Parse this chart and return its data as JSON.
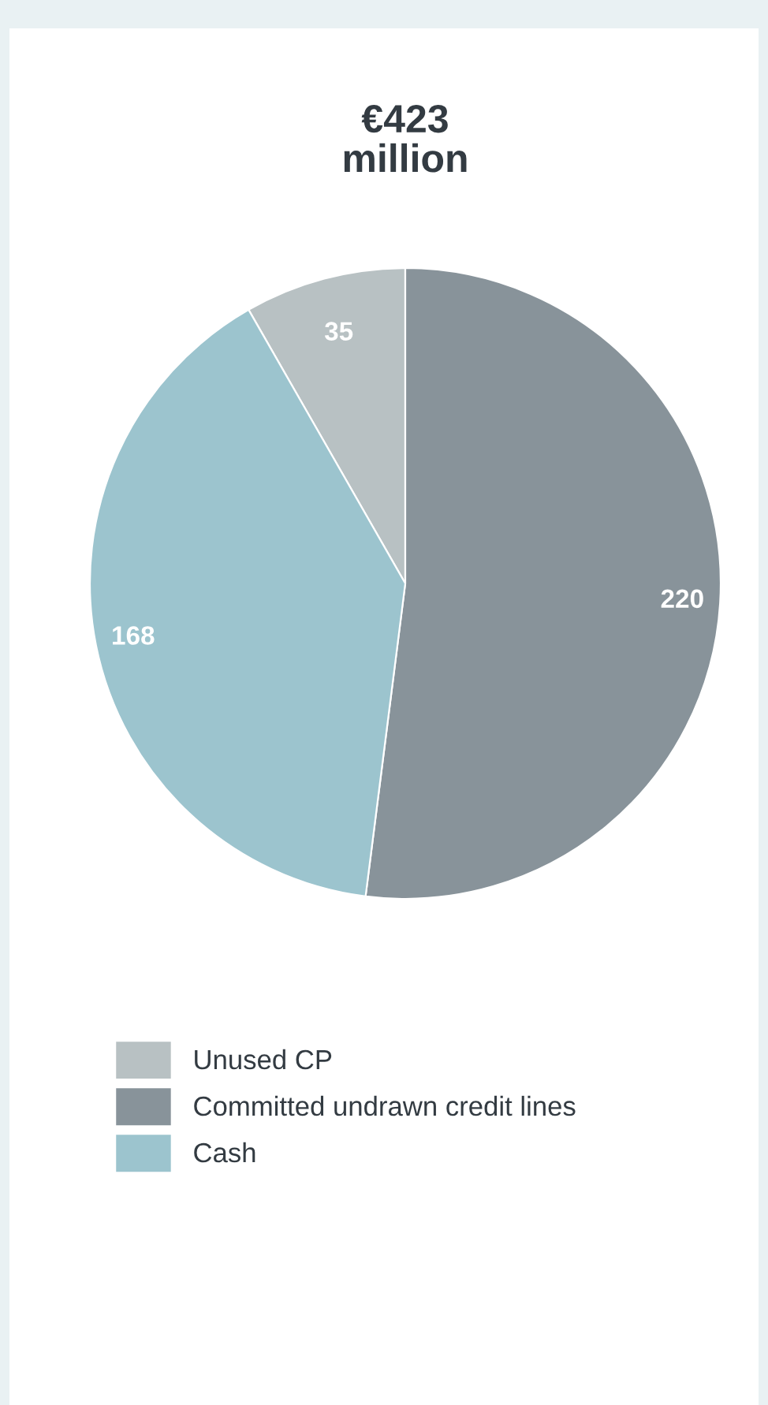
{
  "chart_data": {
    "type": "pie",
    "title": "€423\nmillion",
    "categories": [
      "Unused CP",
      "Committed undrawn credit lines",
      "Cash"
    ],
    "values": [
      35,
      220,
      168
    ],
    "colors": [
      "#b8c1c3",
      "#88939a",
      "#9cc4ce"
    ],
    "data_labels": true,
    "legend": "bottom"
  }
}
